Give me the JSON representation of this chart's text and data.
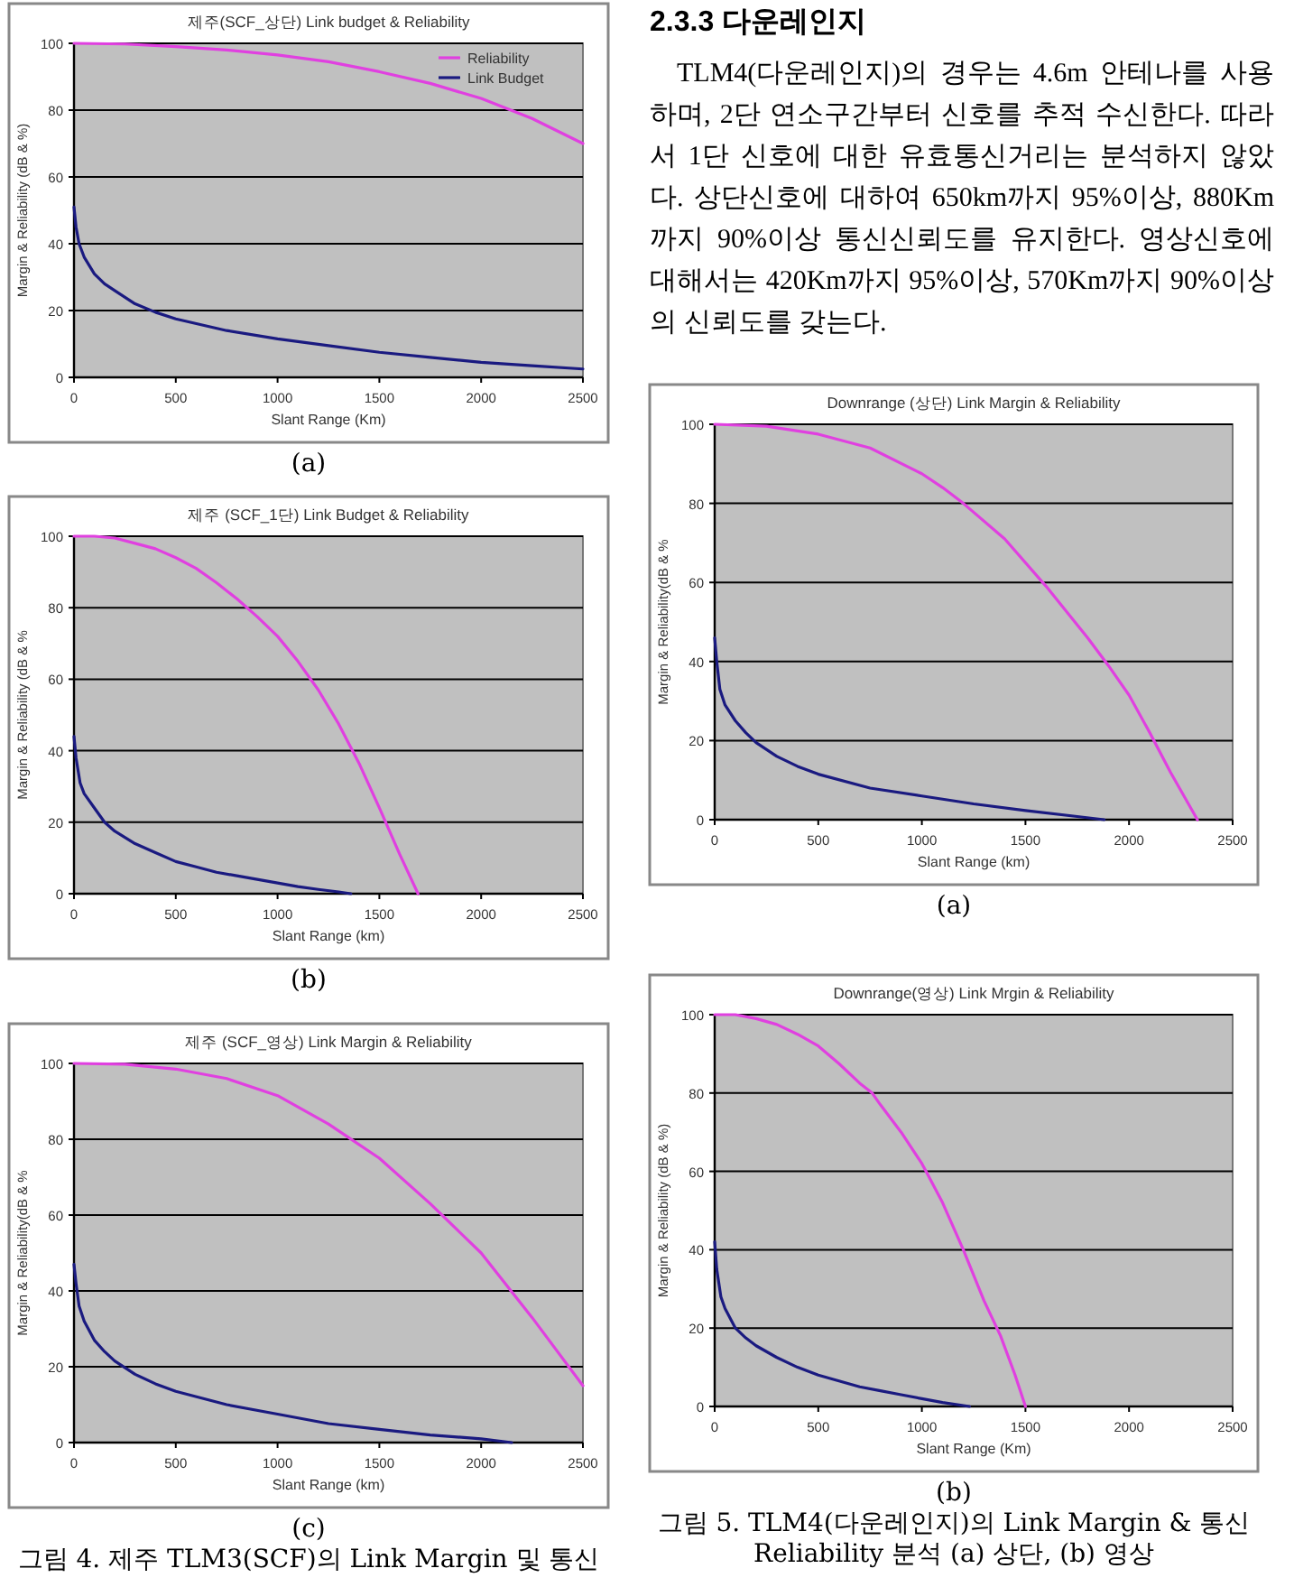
{
  "chart_data": [
    {
      "type": "line",
      "title": "제주(SCF_상단) Link budget & Reliability",
      "xlabel": "Slant Range (Km)",
      "ylabel": "Margin & Reliability (dB & %)",
      "xlim": [
        0,
        2500
      ],
      "ylim": [
        0,
        100
      ],
      "xticks": [
        0,
        500,
        1000,
        1500,
        2000,
        2500
      ],
      "yticks": [
        0,
        20,
        40,
        60,
        80,
        100
      ],
      "grid": "y",
      "legend": "top right",
      "annotations": [
        "(a)"
      ],
      "series": [
        {
          "name": "Reliability",
          "color": "#e040e0",
          "x": [
            0,
            250,
            500,
            750,
            1000,
            1250,
            1500,
            1750,
            2000,
            2250,
            2500
          ],
          "values": [
            100,
            99.8,
            99,
            98,
            96.5,
            94.5,
            91.5,
            88,
            83.5,
            77.5,
            70
          ]
        },
        {
          "name": "Link Budget",
          "color": "#1a1a80",
          "x": [
            0,
            10,
            25,
            50,
            100,
            150,
            200,
            300,
            400,
            500,
            750,
            1000,
            1250,
            1500,
            1750,
            2000,
            2250,
            2500
          ],
          "values": [
            51,
            45,
            40,
            36,
            31,
            28,
            26,
            22,
            19.5,
            17.5,
            14,
            11.5,
            9.5,
            7.5,
            6,
            4.5,
            3.5,
            2.5
          ]
        }
      ]
    },
    {
      "type": "line",
      "title": "제주 (SCF_1단) Link Budget & Reliability",
      "xlabel": "Slant Range (km)",
      "ylabel": "Margin & Reliability (dB & %",
      "xlim": [
        0,
        2500
      ],
      "ylim": [
        0,
        100
      ],
      "xticks": [
        0,
        500,
        1000,
        1500,
        2000,
        2500
      ],
      "yticks": [
        0,
        20,
        40,
        60,
        80,
        100
      ],
      "grid": "y",
      "annotations": [
        "(b)"
      ],
      "series": [
        {
          "color": "#e040e0",
          "x": [
            0,
            100,
            200,
            300,
            400,
            500,
            600,
            700,
            800,
            900,
            1000,
            1100,
            1200,
            1300,
            1400,
            1500,
            1600,
            1690
          ],
          "values": [
            100,
            100,
            99.5,
            98,
            96.5,
            94,
            91,
            87,
            82.5,
            77.5,
            72,
            65,
            57,
            47.5,
            36.5,
            24,
            11,
            0
          ]
        },
        {
          "color": "#1a1a80",
          "x": [
            0,
            10,
            30,
            50,
            100,
            150,
            200,
            300,
            400,
            500,
            600,
            700,
            800,
            900,
            1000,
            1100,
            1200,
            1300,
            1360
          ],
          "values": [
            44,
            38,
            31,
            28,
            24,
            20,
            17.5,
            14,
            11.5,
            9,
            7.5,
            6,
            5,
            4,
            3,
            2,
            1.2,
            0.5,
            0
          ]
        }
      ]
    },
    {
      "type": "line",
      "title": "제주 (SCF_영상) Link Margin & Reliability",
      "xlabel": "Slant Range (km)",
      "ylabel": "Margin & Reliability(dB & %",
      "xlim": [
        0,
        2500
      ],
      "ylim": [
        0,
        100
      ],
      "xticks": [
        0,
        500,
        1000,
        1500,
        2000,
        2500
      ],
      "yticks": [
        0,
        20,
        40,
        60,
        80,
        100
      ],
      "grid": "y",
      "annotations": [
        "(c)",
        "그림 4. 제주 TLM3(SCF)의 Link Margin 및 통신"
      ],
      "series": [
        {
          "color": "#e040e0",
          "x": [
            0,
            250,
            500,
            750,
            1000,
            1250,
            1500,
            1750,
            2000,
            2250,
            2500
          ],
          "values": [
            100,
            99.8,
            98.5,
            96,
            91.5,
            84,
            75,
            63,
            50,
            33,
            15
          ]
        },
        {
          "color": "#1a1a80",
          "x": [
            0,
            10,
            25,
            50,
            100,
            150,
            200,
            300,
            400,
            500,
            750,
            1000,
            1250,
            1500,
            1750,
            2000,
            2150
          ],
          "values": [
            47,
            42,
            36,
            32,
            27,
            24,
            21.5,
            18,
            15.5,
            13.5,
            10,
            7.5,
            5,
            3.5,
            2,
            1,
            0
          ]
        }
      ]
    },
    {
      "type": "other",
      "title": "2.3.3 다운레인지",
      "annotations": [
        "TLM4(다운레인지)의 경우는 4.6m 안테나를 사용하며, 2단 연소구간부터 신호를 추적 수신한다. 따라서 1단 신호에 대한 유효통신거리는 분석하지 않았다. 상단신호에 대하여 650km까지 95%이상, 880Km까지 90%이상 통신신뢰도를 유지한다. 영상신호에 대해서는 420Km까지 95%이상, 570Km까지 90%이상의 신뢰도를 갖는다."
      ]
    },
    {
      "type": "line",
      "title": "Downrange (상단) Link Margin & Reliability",
      "xlabel": "Slant Range (km)",
      "ylabel": "Margin & Reliability(dB & %",
      "xlim": [
        0,
        2500
      ],
      "ylim": [
        0,
        100
      ],
      "xticks": [
        0,
        500,
        1000,
        1500,
        2000,
        2500
      ],
      "yticks": [
        0,
        20,
        40,
        60,
        80,
        100
      ],
      "grid": "y",
      "annotations": [
        "(a)"
      ],
      "series": [
        {
          "color": "#e040e0",
          "x": [
            0,
            250,
            500,
            750,
            1000,
            1100,
            1200,
            1400,
            1600,
            1800,
            1900,
            2000,
            2100,
            2200,
            2330
          ],
          "values": [
            100,
            99.5,
            97.5,
            94,
            87.5,
            84,
            80,
            71,
            59,
            46,
            39,
            31.5,
            22,
            12,
            0
          ]
        },
        {
          "color": "#1a1a80",
          "x": [
            0,
            10,
            25,
            50,
            100,
            150,
            200,
            300,
            400,
            500,
            750,
            1000,
            1250,
            1500,
            1750,
            1880
          ],
          "values": [
            46,
            40,
            33,
            29,
            25,
            22,
            19.5,
            16,
            13.5,
            11.5,
            8,
            6,
            4,
            2.3,
            0.8,
            0
          ]
        }
      ]
    },
    {
      "type": "line",
      "title": "Downrange(영상) Link Mrgin & Reliability",
      "xlabel": "Slant Range (Km)",
      "ylabel": "Margin & Reliability (dB & %)",
      "xlim": [
        0,
        2500
      ],
      "ylim": [
        0,
        100
      ],
      "xticks": [
        0,
        500,
        1000,
        1500,
        2000,
        2500
      ],
      "yticks": [
        0,
        20,
        40,
        60,
        80,
        100
      ],
      "grid": "y",
      "annotations": [
        "(b)",
        "그림 5. TLM4(다운레인지)의 Link Margin & 통신 Reliability 분석 (a) 상단, (b) 영상"
      ],
      "series": [
        {
          "color": "#e040e0",
          "x": [
            0,
            100,
            200,
            300,
            400,
            500,
            600,
            700,
            760,
            800,
            900,
            1000,
            1020,
            1100,
            1200,
            1300,
            1380,
            1450,
            1500
          ],
          "values": [
            100,
            100,
            99,
            97.5,
            95,
            92,
            87.5,
            82.5,
            80,
            77,
            70,
            62,
            60,
            52,
            40,
            27,
            18,
            8,
            0
          ]
        },
        {
          "color": "#1a1a80",
          "x": [
            0,
            10,
            30,
            50,
            100,
            150,
            200,
            300,
            400,
            500,
            600,
            700,
            800,
            900,
            1000,
            1100,
            1230
          ],
          "values": [
            42,
            35,
            28,
            25,
            20,
            17.5,
            15.5,
            12.5,
            10,
            8,
            6.5,
            5,
            4,
            3,
            2,
            1,
            0
          ]
        }
      ]
    }
  ]
}
